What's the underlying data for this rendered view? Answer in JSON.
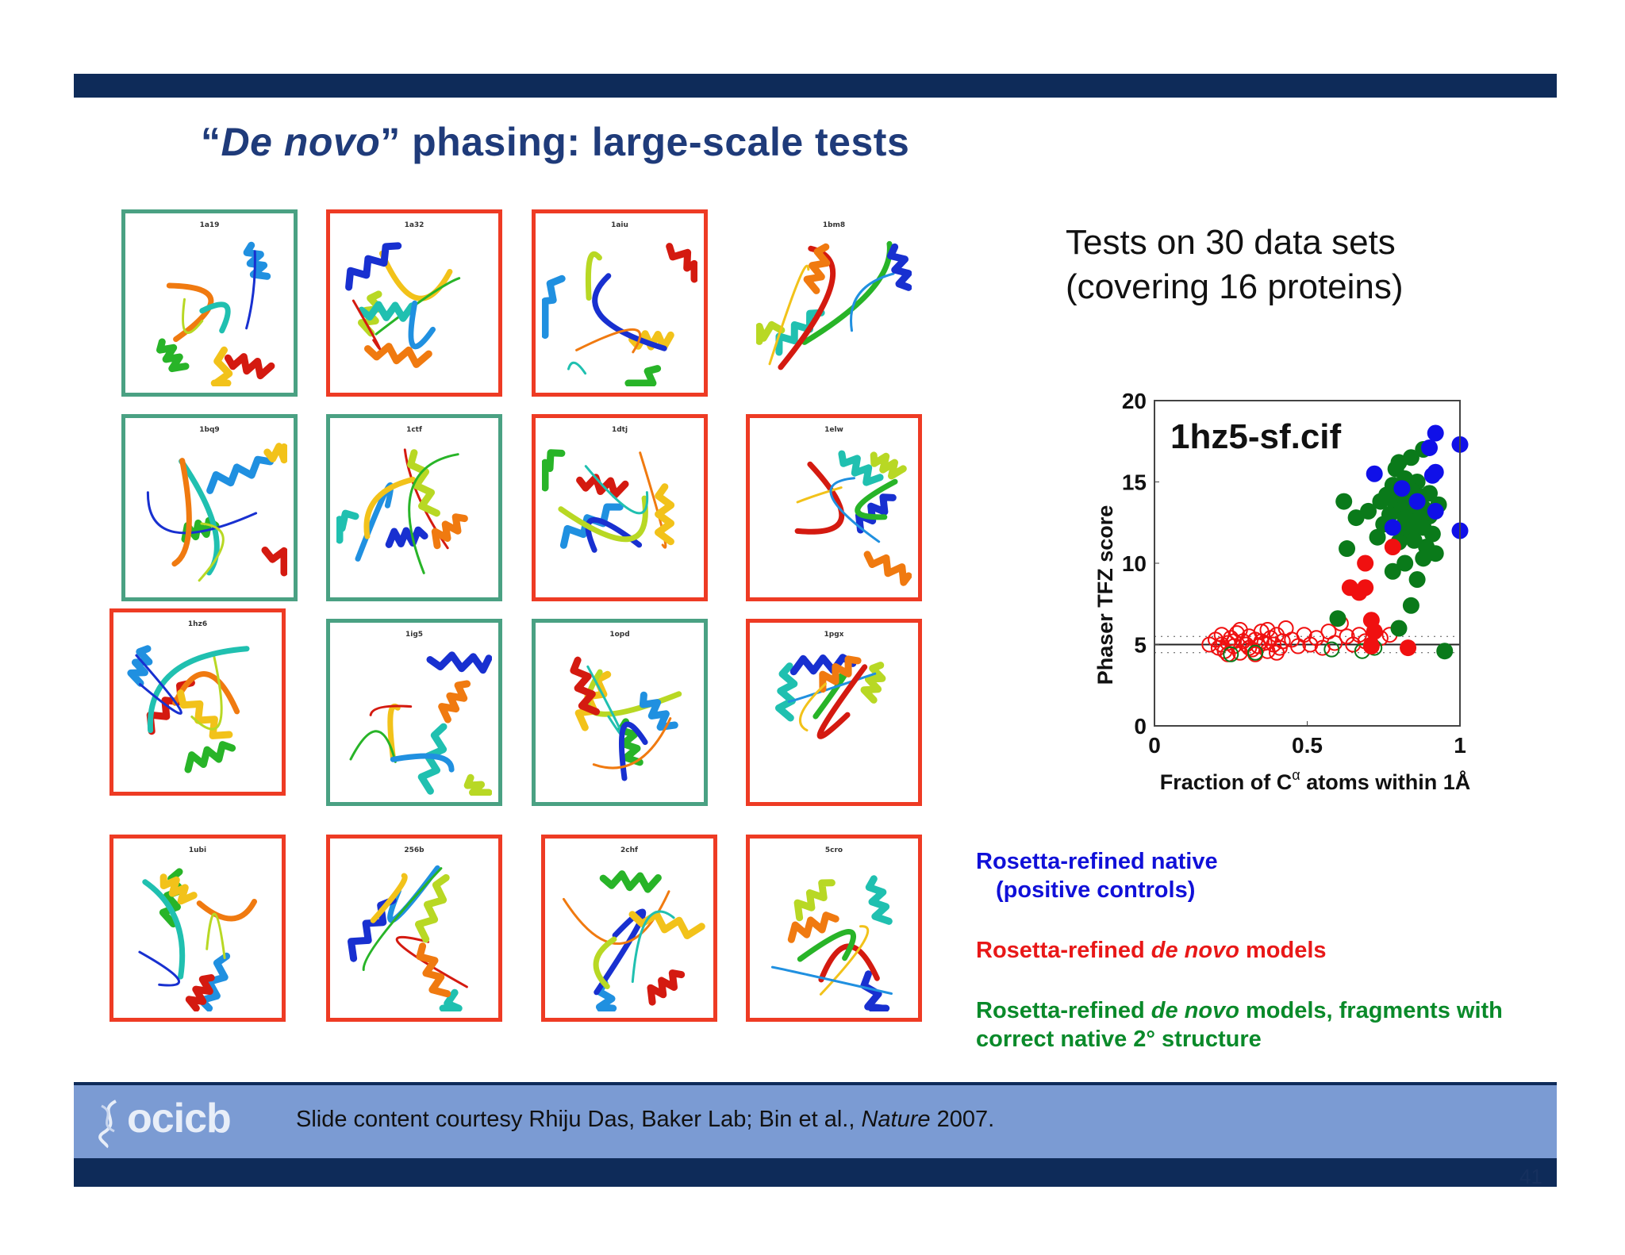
{
  "slide": {
    "title_open_quote": "“",
    "title_italic": "De novo",
    "title_close_quote": "”",
    "title_rest": " phasing: large-scale tests",
    "colors": {
      "bar": "#0e2b59",
      "title": "#1f3b7a",
      "footer_band": "#7b9bd3"
    }
  },
  "structures": [
    {
      "code": "1a19",
      "outcome": "green"
    },
    {
      "code": "1a32",
      "outcome": "red"
    },
    {
      "code": "1aiu",
      "outcome": "red"
    },
    {
      "code": "1bm8",
      "outcome": "none"
    },
    {
      "code": "1bq9",
      "outcome": "green"
    },
    {
      "code": "1ctf",
      "outcome": "green"
    },
    {
      "code": "1dtj",
      "outcome": "red"
    },
    {
      "code": "1elw",
      "outcome": "red"
    },
    {
      "code": "1hz6",
      "outcome": "red"
    },
    {
      "code": "1ig5",
      "outcome": "green"
    },
    {
      "code": "1opd",
      "outcome": "green"
    },
    {
      "code": "1pgx",
      "outcome": "red"
    },
    {
      "code": "1ubi",
      "outcome": "red"
    },
    {
      "code": "256b",
      "outcome": "red"
    },
    {
      "code": "2chf",
      "outcome": "red"
    },
    {
      "code": "5cro",
      "outcome": "red"
    }
  ],
  "tests": {
    "line1": "Tests on 30 data sets",
    "line2": "(covering 16 proteins)"
  },
  "chart_data": {
    "type": "scatter",
    "title": "1hz5-sf.cif",
    "xlabel_pre": "Fraction of C",
    "xlabel_sup": "α",
    "xlabel_post": " atoms within 1Å",
    "ylabel": "Phaser TFZ score",
    "xlim": [
      0,
      1
    ],
    "ylim": [
      0,
      20
    ],
    "xticks": [
      "0",
      "0.5",
      "1"
    ],
    "yticks": [
      "0",
      "5",
      "10",
      "15",
      "20"
    ],
    "reference_line": 5,
    "dotted_lines": [
      4.5,
      5.5
    ],
    "series": [
      {
        "color": "#1010e8",
        "marker": "filled",
        "points": [
          [
            0.92,
            18.0
          ],
          [
            1.0,
            17.3
          ],
          [
            0.9,
            17.1
          ],
          [
            0.72,
            15.5
          ],
          [
            0.92,
            15.6
          ],
          [
            0.91,
            15.4
          ],
          [
            0.81,
            14.6
          ],
          [
            0.92,
            13.2
          ],
          [
            0.78,
            12.2
          ],
          [
            1.0,
            12.0
          ],
          [
            0.86,
            13.8
          ]
        ]
      },
      {
        "color": "#f01010",
        "marker": "filled",
        "points": [
          [
            0.78,
            11.0
          ],
          [
            0.69,
            10.0
          ],
          [
            0.64,
            8.5
          ],
          [
            0.69,
            8.5
          ],
          [
            0.67,
            8.2
          ],
          [
            0.71,
            6.5
          ],
          [
            0.72,
            5.8
          ],
          [
            0.83,
            4.8
          ],
          [
            0.71,
            4.9
          ]
        ]
      },
      {
        "color": "#0a7a1a",
        "marker": "filled",
        "points": [
          [
            0.8,
            16.2
          ],
          [
            0.84,
            16.5
          ],
          [
            0.88,
            17.0
          ],
          [
            0.79,
            15.8
          ],
          [
            0.82,
            15.2
          ],
          [
            0.86,
            15.0
          ],
          [
            0.78,
            14.8
          ],
          [
            0.84,
            14.5
          ],
          [
            0.76,
            14.2
          ],
          [
            0.8,
            14.0
          ],
          [
            0.83,
            13.9
          ],
          [
            0.87,
            14.1
          ],
          [
            0.9,
            14.3
          ],
          [
            0.74,
            13.8
          ],
          [
            0.79,
            13.5
          ],
          [
            0.81,
            13.3
          ],
          [
            0.85,
            13.2
          ],
          [
            0.88,
            13.4
          ],
          [
            0.93,
            13.6
          ],
          [
            0.77,
            13.0
          ],
          [
            0.82,
            12.8
          ],
          [
            0.86,
            12.6
          ],
          [
            0.9,
            12.9
          ],
          [
            0.75,
            12.4
          ],
          [
            0.8,
            12.1
          ],
          [
            0.84,
            11.9
          ],
          [
            0.88,
            12.2
          ],
          [
            0.91,
            11.8
          ],
          [
            0.62,
            13.8
          ],
          [
            0.66,
            12.8
          ],
          [
            0.7,
            13.2
          ],
          [
            0.63,
            10.9
          ],
          [
            0.73,
            11.6
          ],
          [
            0.8,
            11.3
          ],
          [
            0.85,
            11.4
          ],
          [
            0.89,
            11.0
          ],
          [
            0.82,
            10.0
          ],
          [
            0.88,
            10.3
          ],
          [
            0.92,
            10.6
          ],
          [
            0.78,
            9.5
          ],
          [
            0.86,
            9.0
          ],
          [
            0.84,
            7.4
          ],
          [
            0.8,
            6.0
          ],
          [
            0.6,
            6.6
          ],
          [
            0.95,
            4.6
          ]
        ]
      },
      {
        "color": "#f01010",
        "marker": "open",
        "points": [
          [
            0.18,
            5.0
          ],
          [
            0.2,
            5.3
          ],
          [
            0.21,
            4.8
          ],
          [
            0.22,
            5.6
          ],
          [
            0.23,
            4.6
          ],
          [
            0.24,
            5.1
          ],
          [
            0.25,
            5.4
          ],
          [
            0.26,
            4.9
          ],
          [
            0.27,
            5.7
          ],
          [
            0.28,
            4.5
          ],
          [
            0.29,
            5.2
          ],
          [
            0.3,
            5.0
          ],
          [
            0.31,
            5.5
          ],
          [
            0.32,
            4.7
          ],
          [
            0.33,
            5.3
          ],
          [
            0.34,
            4.9
          ],
          [
            0.35,
            5.8
          ],
          [
            0.36,
            5.1
          ],
          [
            0.37,
            4.6
          ],
          [
            0.38,
            5.4
          ],
          [
            0.39,
            5.0
          ],
          [
            0.4,
            5.6
          ],
          [
            0.41,
            4.8
          ],
          [
            0.42,
            5.2
          ],
          [
            0.43,
            6.0
          ],
          [
            0.45,
            5.3
          ],
          [
            0.47,
            4.9
          ],
          [
            0.49,
            5.6
          ],
          [
            0.51,
            5.0
          ],
          [
            0.53,
            5.4
          ],
          [
            0.55,
            4.8
          ],
          [
            0.57,
            5.8
          ],
          [
            0.59,
            5.1
          ],
          [
            0.61,
            6.3
          ],
          [
            0.63,
            5.5
          ],
          [
            0.65,
            5.0
          ],
          [
            0.67,
            5.6
          ],
          [
            0.69,
            5.2
          ],
          [
            0.71,
            5.0
          ],
          [
            0.74,
            5.4
          ],
          [
            0.77,
            5.6
          ],
          [
            0.24,
            4.4
          ],
          [
            0.28,
            5.9
          ],
          [
            0.33,
            4.4
          ],
          [
            0.37,
            5.9
          ],
          [
            0.26,
            5.2
          ],
          [
            0.31,
            4.8
          ],
          [
            0.35,
            5.2
          ],
          [
            0.4,
            4.5
          ],
          [
            0.22,
            5.0
          ]
        ]
      },
      {
        "color": "#0a7a1a",
        "marker": "open",
        "points": [
          [
            0.25,
            4.4
          ],
          [
            0.33,
            4.5
          ],
          [
            0.58,
            4.7
          ],
          [
            0.68,
            4.6
          ],
          [
            0.72,
            4.8
          ]
        ]
      }
    ]
  },
  "legend": {
    "native_line1": "Rosetta-refined native",
    "native_line2": "(positive controls)",
    "denovo_pre": "Rosetta-refined ",
    "denovo_italic": "de novo",
    "denovo_post": " models",
    "frag_pre": "Rosetta-refined ",
    "frag_italic": "de novo",
    "frag_post": " models, fragments with",
    "frag_line2": "correct native 2° structure",
    "colors": {
      "native": "#1010d8",
      "denovo": "#e81818",
      "fragments": "#0a8a2a"
    }
  },
  "footer": {
    "logo_text": "ocicb",
    "credit_pre": "Slide content courtesy Rhiju Das, Baker Lab; Bin et al., ",
    "credit_italic": "Nature",
    "credit_post": " 2007.",
    "page_number": "41"
  }
}
